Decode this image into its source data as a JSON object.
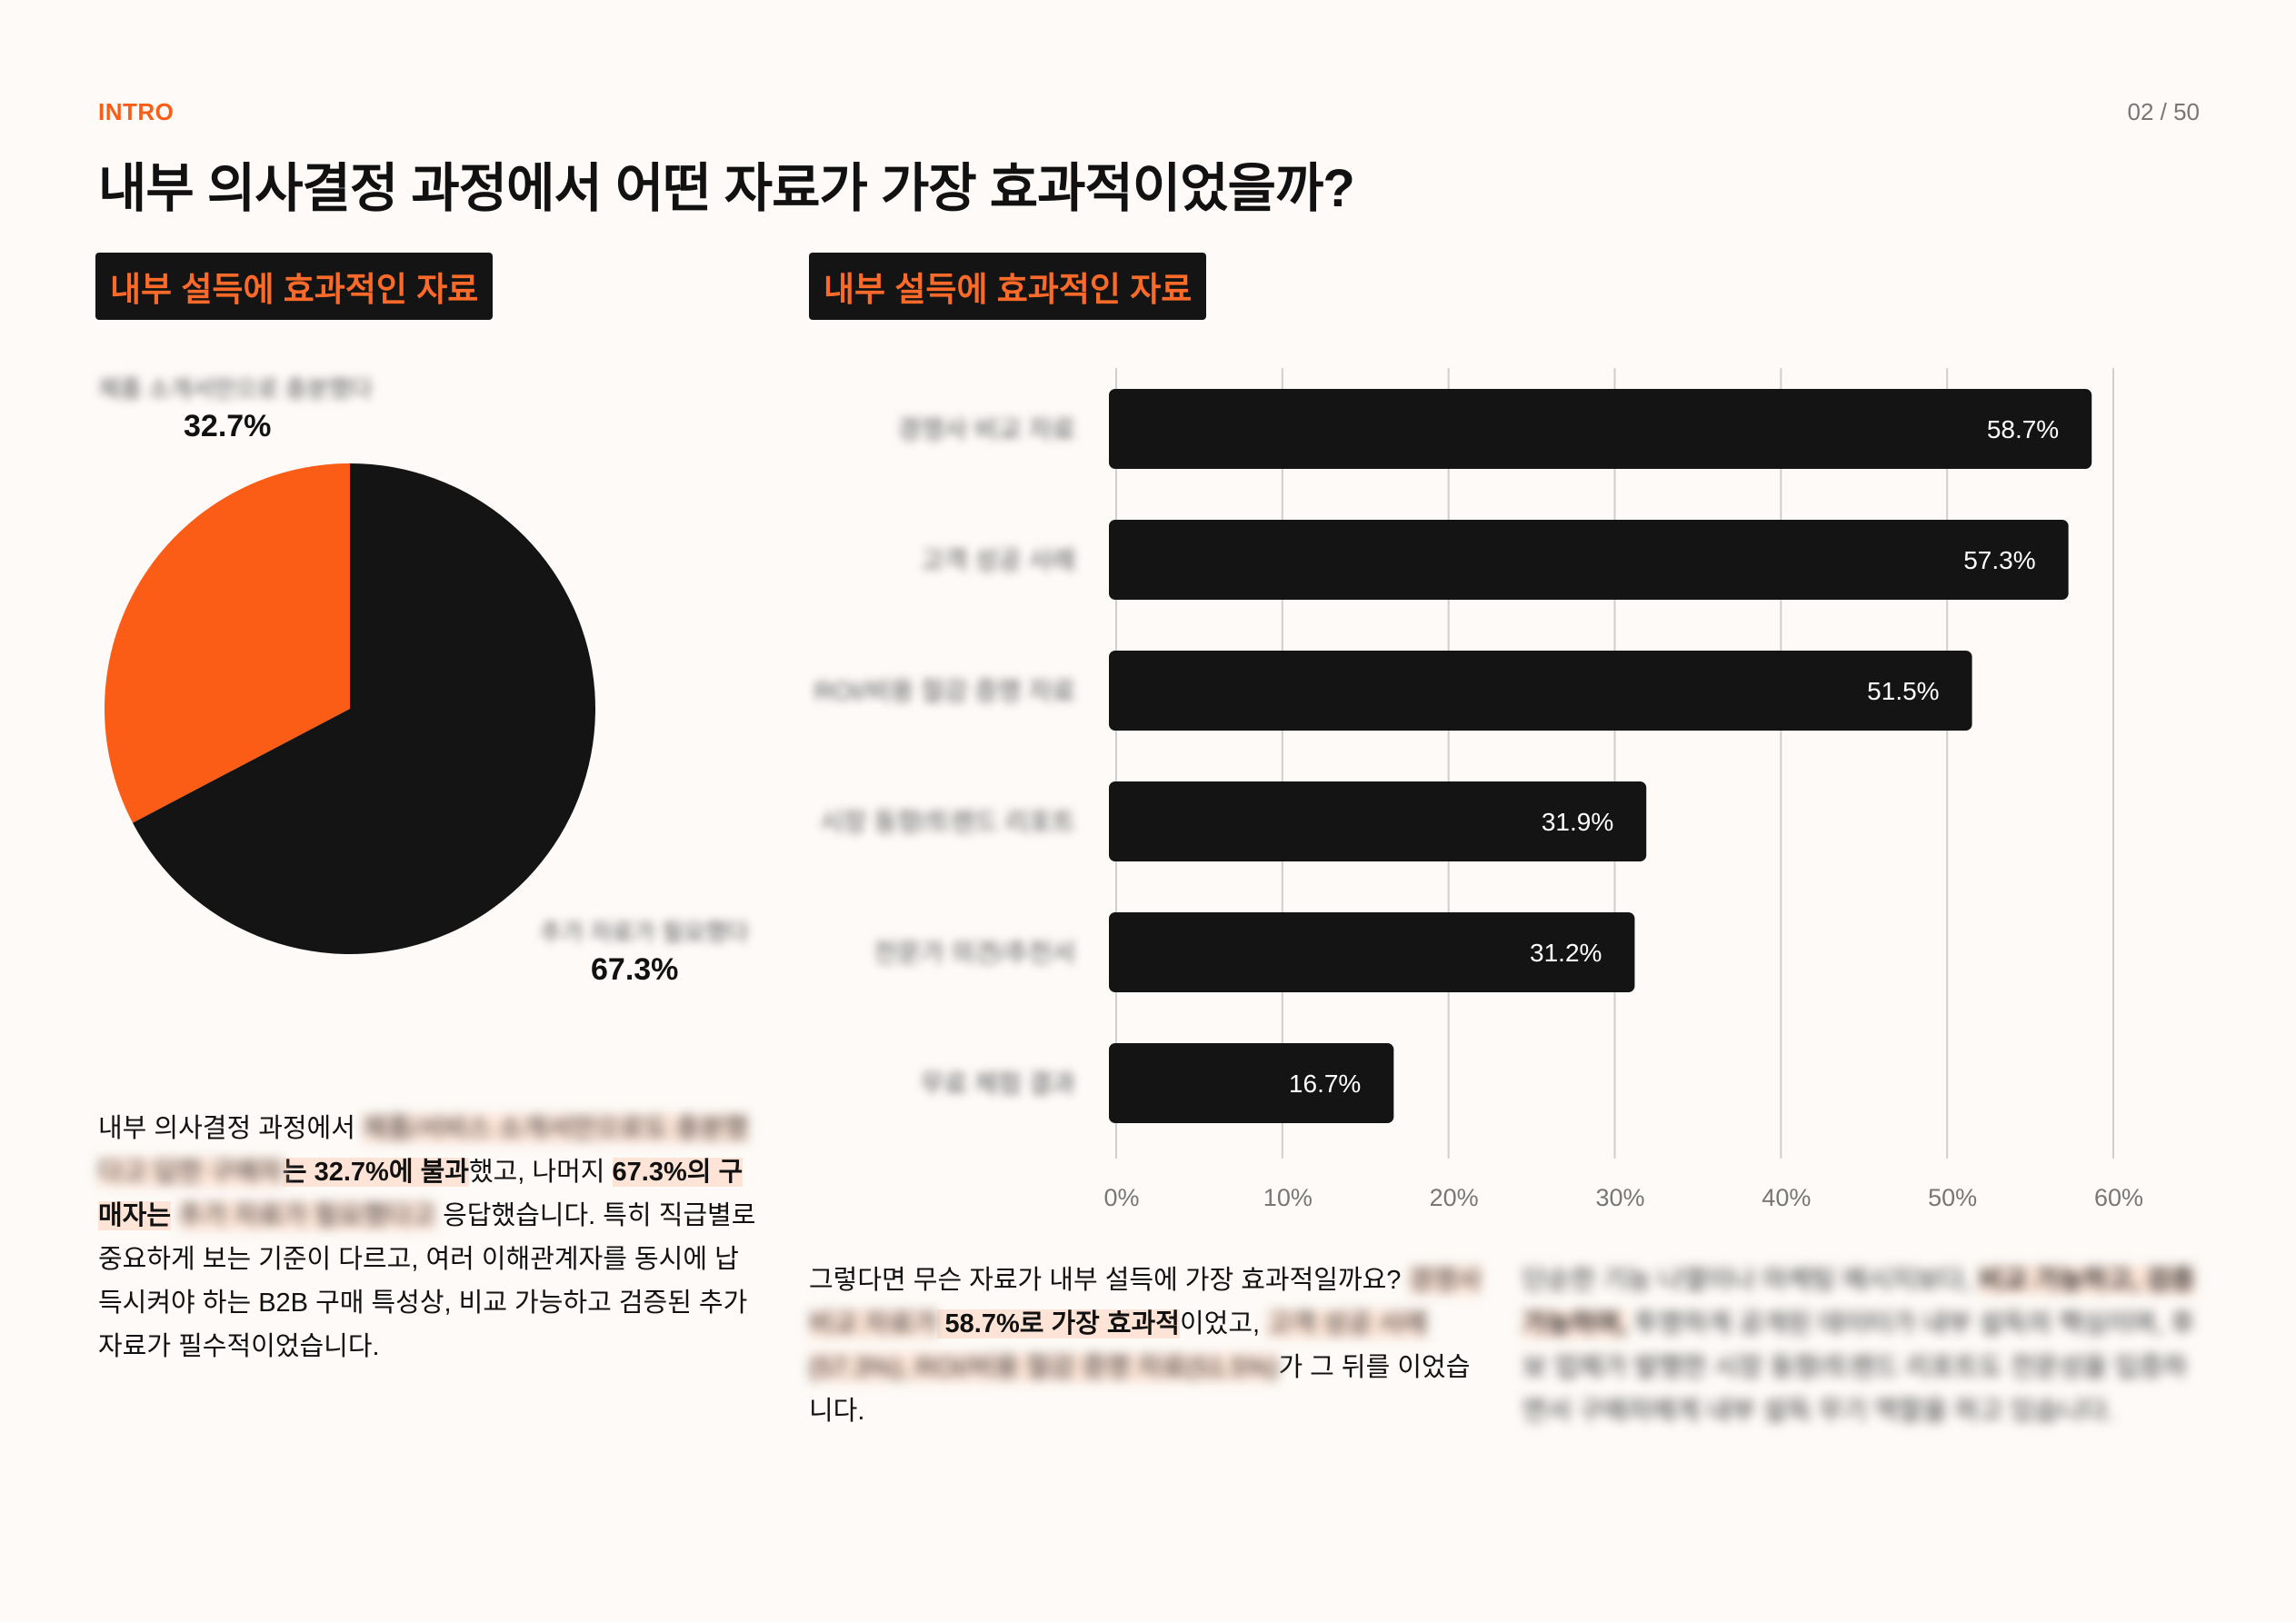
{
  "header": {
    "eyebrow": "INTRO",
    "page": "02 / 50",
    "title": "내부 의사결정 과정에서 어떤 자료가 가장 효과적이었을까?"
  },
  "pie_panel": {
    "badge": "내부 설득에 효과적인 자료"
  },
  "bar_panel": {
    "badge": "내부 설득에 효과적인 자료"
  },
  "colors": {
    "accent": "#fb5c16",
    "dark": "#141414",
    "highlight": "#fde4d6",
    "grid": "#cfcfcf"
  },
  "chart_data": [
    {
      "type": "pie",
      "slices": [
        {
          "label": "제품 소개서만으로 충분했다",
          "value": 32.7,
          "display": "32.7%",
          "color": "#fb5c16"
        },
        {
          "label": "추가 자료가 필요했다",
          "value": 67.3,
          "display": "67.3%",
          "color": "#141414"
        }
      ]
    },
    {
      "type": "bar",
      "orientation": "horizontal",
      "categories": [
        "경쟁사 비교 자료",
        "고객 성공 사례",
        "ROI/비용 절감 증명 자료",
        "시장 동향/트렌드 리포트",
        "전문가 의견/추천서",
        "무료 체험 결과"
      ],
      "values": [
        58.7,
        57.3,
        51.5,
        31.9,
        31.2,
        16.7
      ],
      "value_labels": [
        "58.7%",
        "57.3%",
        "51.5%",
        "31.9%",
        "31.2%",
        "16.7%"
      ],
      "xlim": [
        0,
        60
      ],
      "xticks": [
        "0%",
        "10%",
        "20%",
        "30%",
        "40%",
        "50%",
        "60%"
      ],
      "grid": "vertical"
    }
  ],
  "para_left": {
    "s1": "내부 의사결정 과정에서 ",
    "s2": "제품/서비스 소개서만으로도 충분했다고 답한 구매자",
    "s3": "는 32.7%에 불과",
    "s4": "했고, 나머지 ",
    "s5": "67.3%의 구매자는",
    "s6": " ",
    "s7": "추가 자료가 필요했다고",
    "s8": " 응답했습니다. 특히 직급별로 중요하게 보는 기준이 다르고, 여러 이해관계자를 동시에 납득시켜야 하는 B2B 구매 특성상, 비교 가능하고 검증된 추가 자료가 필수적이었습니다."
  },
  "para_mid": {
    "s1": "그렇다면 무슨 자료가 내부 설득에 가장 효과적일까요? ",
    "s2": "경쟁사 비교 자료가",
    "s3": " 58.7%로 가장 효과적",
    "s4": "이었고, ",
    "s5": "고객 성공 사례(57.3%), ROI/비용 절감 증명 자료(51.5%)",
    "s6": "가 그 뒤를 이었습니다."
  },
  "para_right": {
    "s1": "단순한 기능 나열이나 마케팅 메시지보다, ",
    "s2": "비교 가능하고, 검증 가능하며,",
    "s3": " 투명하게 공개된 데이터가 내부 설득의 핵심이며, 후보 업체가 발행한 시장 동향/트렌드 리포트도 전문성을 입증하면서 구매자에게 내부 설득 무기 역할을 하고 있습니다."
  }
}
